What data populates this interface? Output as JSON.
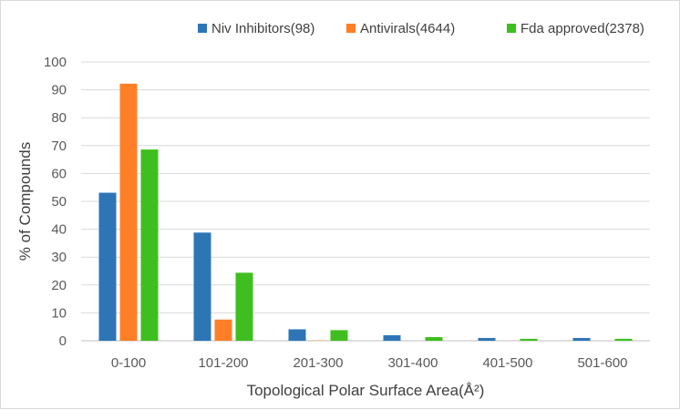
{
  "chart_data": {
    "type": "bar",
    "title": "",
    "xlabel": "Topological Polar Surface Area(Å²)",
    "ylabel": "% of Compounds",
    "ylim": [
      0,
      100
    ],
    "yticks": [
      "0",
      "10",
      "20",
      "30",
      "40",
      "50",
      "60",
      "70",
      "80",
      "90",
      "100"
    ],
    "categories": [
      "0-100",
      "101-200",
      "201-300",
      "301-400",
      "401-500",
      "501-600"
    ],
    "grid": true,
    "legend_position": "top",
    "series": [
      {
        "name": "Niv Inhibitors(98)",
        "color": "#2e75b6",
        "values": [
          53.1,
          38.8,
          4.1,
          2.0,
          1.0,
          1.0
        ]
      },
      {
        "name": "Antivirals(4644)",
        "color": "#ff7f27",
        "values": [
          92.2,
          7.6,
          0.1,
          0.0,
          0.0,
          0.0
        ]
      },
      {
        "name": "Fda approved(2378)",
        "color": "#3fbf1f",
        "values": [
          68.6,
          24.4,
          3.8,
          1.3,
          0.7,
          0.7
        ]
      }
    ]
  }
}
